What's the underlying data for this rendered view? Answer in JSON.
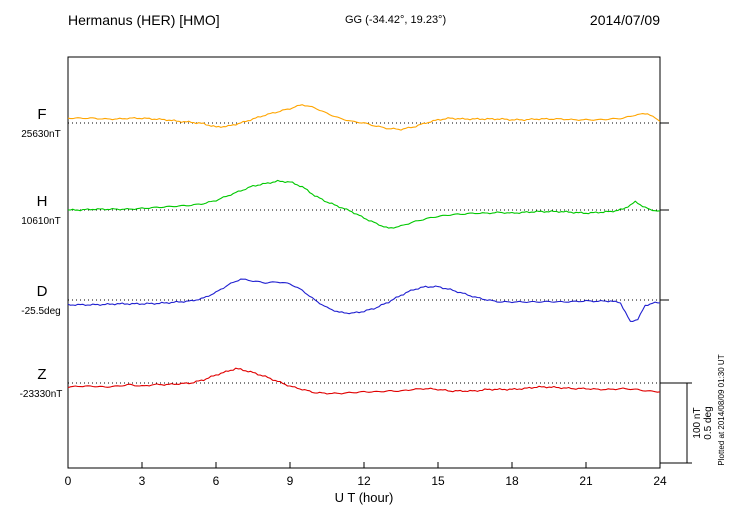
{
  "header": {
    "station_title": "Hermanus (HER)  [HMO]",
    "coords": "GG (-34.42°,  19.23°)",
    "date": "2014/07/09"
  },
  "axis": {
    "x_label": "U T (hour)",
    "x_ticks": [
      "0",
      "3",
      "6",
      "9",
      "12",
      "15",
      "18",
      "21",
      "24"
    ]
  },
  "scale_bar": {
    "line1": "100 nT",
    "line2": "0.5 deg"
  },
  "plotted_at": "Plotted at 2014/08/09 01:30 UT",
  "chart_data": {
    "type": "line",
    "title": "Hermanus (HER) [HMO] magnetogram 2014/07/09",
    "xlabel": "U T (hour)",
    "x_range": [
      0,
      24
    ],
    "x_tick_step": 3,
    "grid": "dotted-baselines",
    "scale": {
      "nT_per_div": 100,
      "deg_per_div": 0.5
    },
    "series": [
      {
        "name": "F",
        "baseline_value": "25630nT",
        "unit": "nT",
        "color": "#FFA500",
        "x": [
          0,
          0.5,
          1,
          1.5,
          2,
          2.5,
          3,
          3.5,
          4,
          4.5,
          5,
          5.5,
          6,
          6.5,
          7,
          7.5,
          8,
          8.5,
          9,
          9.5,
          10,
          10.5,
          11,
          11.5,
          12,
          12.5,
          13,
          13.5,
          14,
          14.5,
          15,
          15.5,
          16,
          16.5,
          17,
          17.5,
          18,
          18.5,
          19,
          19.5,
          20,
          20.5,
          21,
          21.5,
          22,
          22.5,
          23,
          23.5,
          24
        ],
        "offsets": [
          6,
          6,
          6,
          5,
          5,
          6,
          6,
          5,
          4,
          2,
          1,
          -1,
          -5,
          -4,
          0,
          5,
          10,
          14,
          18,
          23,
          19,
          12,
          6,
          2,
          0,
          -4,
          -7,
          -8,
          -5,
          0,
          4,
          6,
          5,
          5,
          5,
          5,
          4,
          4,
          5,
          5,
          5,
          4,
          4,
          4,
          5,
          6,
          10,
          12,
          2
        ]
      },
      {
        "name": "H",
        "baseline_value": "10610nT",
        "unit": "nT",
        "color": "#00C800",
        "x": [
          0,
          0.5,
          1,
          1.5,
          2,
          2.5,
          3,
          3.5,
          4,
          4.5,
          5,
          5.5,
          6,
          6.5,
          7,
          7.5,
          8,
          8.5,
          9,
          9.5,
          10,
          10.5,
          11,
          11.5,
          12,
          12.5,
          13,
          13.5,
          14,
          14.5,
          15,
          15.5,
          16,
          16.5,
          17,
          17.5,
          18,
          18.5,
          19,
          19.5,
          20,
          20.5,
          21,
          21.5,
          22,
          22.5,
          23,
          23.3,
          23.6,
          24
        ],
        "offsets": [
          0,
          0,
          1,
          1,
          1,
          1,
          2,
          3,
          4,
          5,
          6,
          8,
          12,
          18,
          24,
          30,
          33,
          36,
          35,
          29,
          18,
          10,
          4,
          -2,
          -10,
          -17,
          -23,
          -20,
          -15,
          -11,
          -8,
          -6,
          -5,
          -4,
          -4,
          -3,
          -4,
          -3,
          -2,
          -2,
          -2,
          -3,
          -4,
          -3,
          -2,
          1,
          10,
          5,
          0,
          -1
        ]
      },
      {
        "name": "D",
        "baseline_value": "-25.5deg",
        "unit": "deg",
        "color": "#2020D0",
        "x": [
          0,
          0.5,
          1,
          1.5,
          2,
          2.5,
          3,
          3.5,
          4,
          4.5,
          5,
          5.5,
          6,
          6.5,
          7,
          7.5,
          8,
          8.5,
          9,
          9.5,
          10,
          10.5,
          11,
          11.5,
          12,
          12.5,
          13,
          13.5,
          14,
          14.5,
          15,
          15.5,
          16,
          16.5,
          17,
          17.5,
          18,
          18.5,
          19,
          19.5,
          20,
          20.5,
          21,
          21.5,
          22,
          22.4,
          22.8,
          23.1,
          23.4,
          23.7,
          24
        ],
        "offsets": [
          -0.03,
          -0.03,
          -0.03,
          -0.028,
          -0.024,
          -0.024,
          -0.024,
          -0.022,
          -0.018,
          -0.012,
          -0.006,
          0.012,
          0.048,
          0.095,
          0.131,
          0.119,
          0.107,
          0.113,
          0.101,
          0.06,
          0.0,
          -0.048,
          -0.077,
          -0.083,
          -0.071,
          -0.048,
          -0.012,
          0.03,
          0.065,
          0.083,
          0.083,
          0.065,
          0.042,
          0.018,
          0.0,
          -0.012,
          -0.012,
          -0.012,
          -0.012,
          -0.01,
          -0.012,
          -0.01,
          -0.006,
          -0.008,
          -0.006,
          -0.018,
          -0.137,
          -0.119,
          -0.036,
          -0.018,
          -0.018
        ]
      },
      {
        "name": "Z",
        "baseline_value": "-23330nT",
        "unit": "nT",
        "color": "#E00000",
        "x": [
          0,
          0.5,
          1,
          1.5,
          2,
          2.5,
          3,
          3.5,
          4,
          4.5,
          5,
          5.5,
          6,
          6.5,
          6.8,
          7,
          7.5,
          8,
          8.5,
          9,
          9.5,
          10,
          10.5,
          11,
          11.5,
          12,
          12.5,
          13,
          13.5,
          14,
          14.5,
          15,
          15.5,
          16,
          16.5,
          17,
          17.5,
          18,
          18.5,
          19,
          19.5,
          20,
          20.5,
          21,
          21.5,
          22,
          22.5,
          23,
          23.5,
          24
        ],
        "offsets": [
          -5,
          -4,
          -4,
          -5,
          -4,
          -2,
          -4,
          -2,
          -2,
          -1,
          0,
          4,
          10,
          15,
          18,
          17,
          13,
          8,
          2,
          -4,
          -8,
          -12,
          -13,
          -13,
          -12,
          -11,
          -11,
          -10,
          -10,
          -8,
          -7,
          -8,
          -10,
          -10,
          -10,
          -8,
          -8,
          -8,
          -7,
          -5,
          -5,
          -6,
          -7,
          -7,
          -8,
          -8,
          -7,
          -8,
          -10,
          -11
        ]
      }
    ]
  }
}
